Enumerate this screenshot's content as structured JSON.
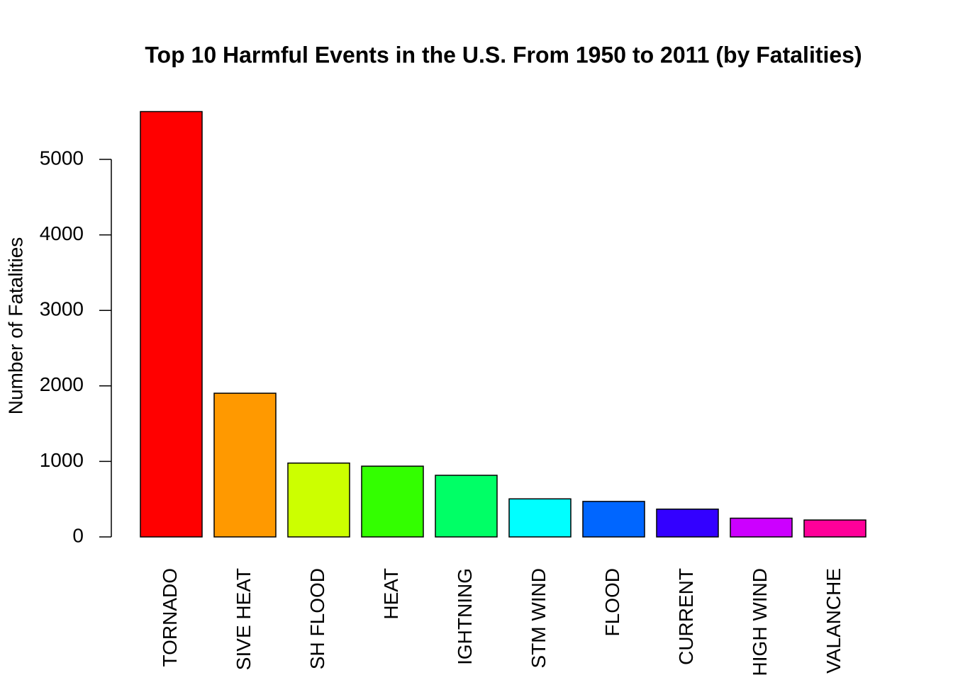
{
  "chart_data": {
    "type": "bar",
    "title": "Top 10 Harmful Events in the U.S. From 1950 to 2011 (by Fatalities)",
    "y_label": "Number of Fatalities",
    "categories": [
      "TORNADO",
      "SIVE HEAT",
      "SH FLOOD",
      "HEAT",
      "IGHTNING",
      "STM WIND",
      "FLOOD",
      "CURRENT",
      "HIGH WIND",
      "VALANCHE"
    ],
    "values": [
      5633,
      1903,
      978,
      937,
      816,
      504,
      470,
      368,
      248,
      224
    ],
    "colors": [
      "#ff0000",
      "#ff9900",
      "#ccff00",
      "#33ff00",
      "#00ff66",
      "#00ffff",
      "#0066ff",
      "#3300ff",
      "#cc00ff",
      "#ff0099"
    ],
    "ylim": [
      0,
      6000
    ],
    "yticks": [
      0,
      1000,
      2000,
      3000,
      4000,
      5000
    ],
    "grid": false
  }
}
